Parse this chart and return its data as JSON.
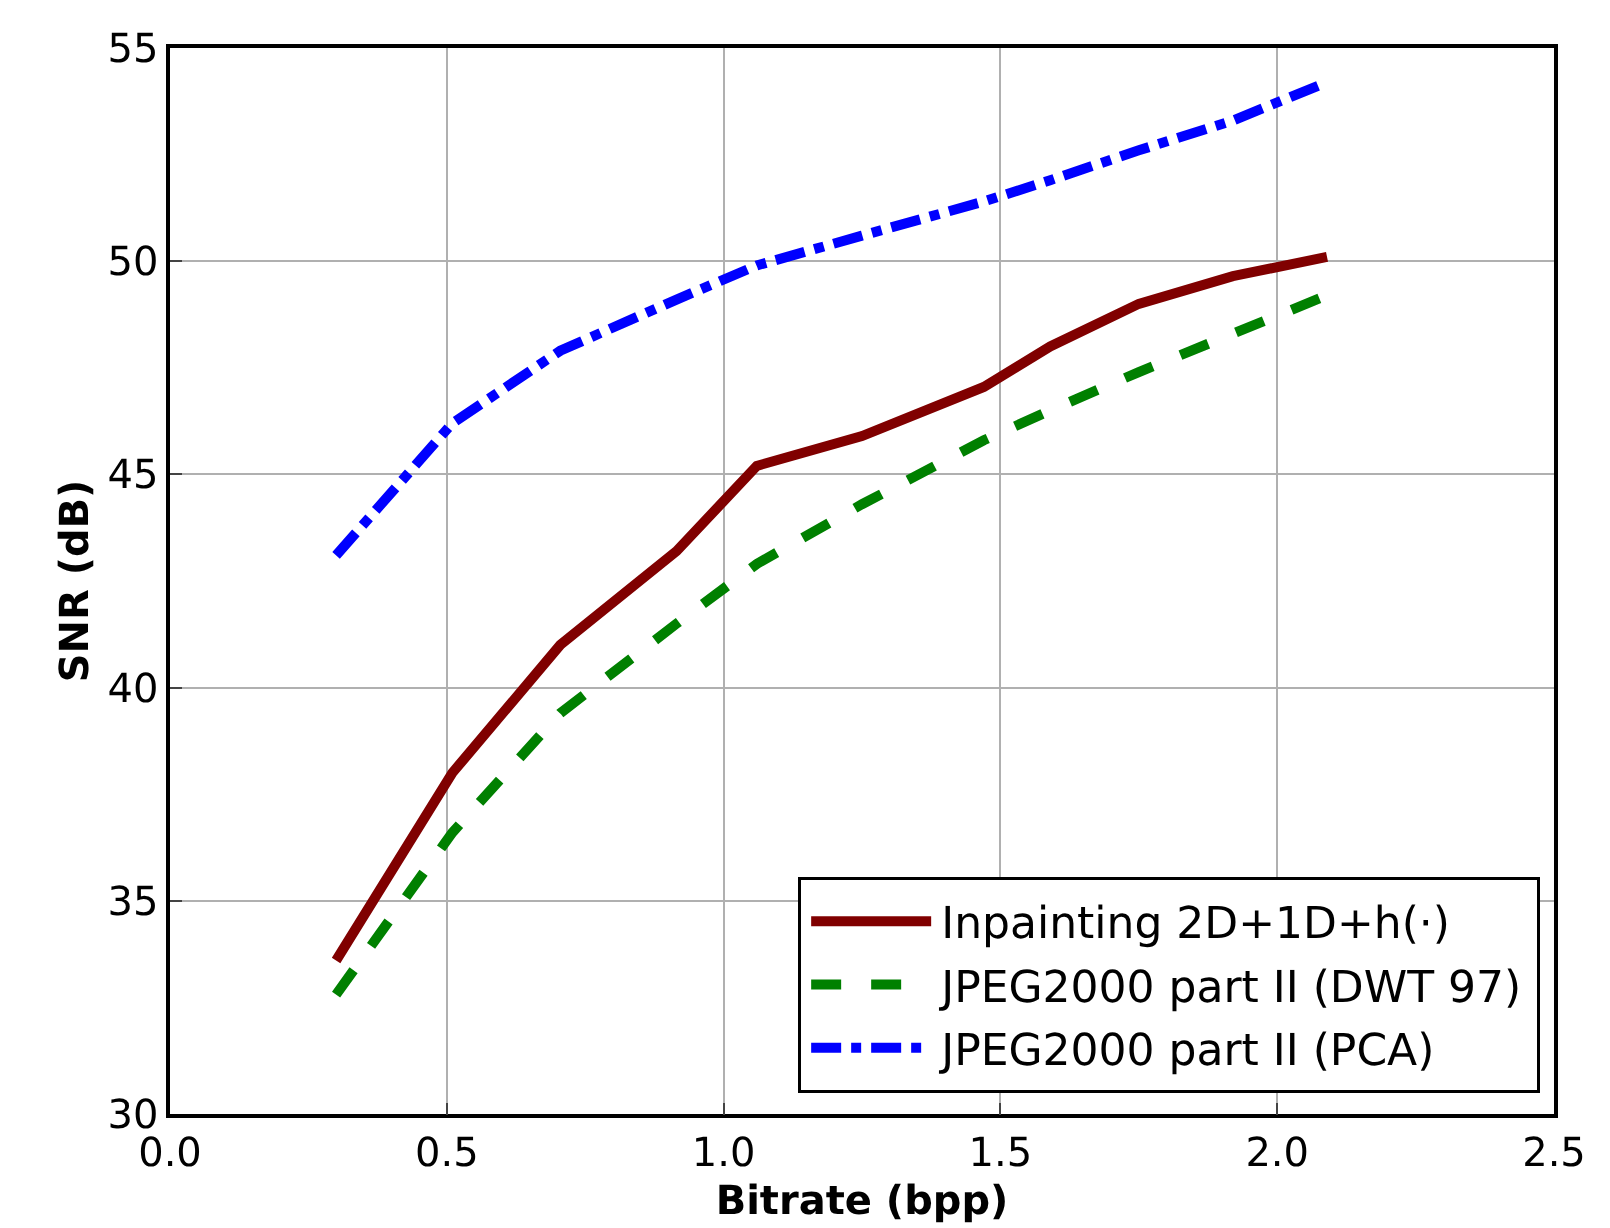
{
  "chart_data": {
    "type": "line",
    "xlabel": "Bitrate (bpp)",
    "ylabel": "SNR (dB)",
    "xlim": [
      0.0,
      2.5
    ],
    "xticks": [
      {
        "value": 0,
        "label": "0.0"
      },
      0.5,
      {
        "value": 1,
        "label": "1.0"
      },
      1.5,
      {
        "value": 2,
        "label": "2.0"
      },
      2.5
    ],
    "ylim": [
      30,
      55
    ],
    "yticks": [
      30,
      35,
      40,
      45,
      50,
      55
    ],
    "grid": true,
    "legend": "bottom right",
    "marker": "none",
    "x": [
      0.3,
      0.51,
      0.705,
      0.915,
      1.06,
      1.25,
      1.47,
      1.59,
      1.75,
      1.92,
      2.09
    ],
    "series": [
      {
        "name": "Inpainting 2D+1D+h(·)",
        "color": "#800000",
        "line_style": "solid",
        "values": [
          33.6,
          38.0,
          41.0,
          43.2,
          45.2,
          45.9,
          47.05,
          48.0,
          49.0,
          49.65,
          50.1
        ]
      },
      {
        "name": "JPEG2000 part II (DWT 97)",
        "color": "#008000",
        "line_style": "dashed",
        "values": [
          32.8,
          36.6,
          39.4,
          41.5,
          42.9,
          44.3,
          45.8,
          46.5,
          47.4,
          48.3,
          49.2
        ]
      },
      {
        "name": "JPEG2000 part II (PCA)",
        "color": "#0000ff",
        "line_style": "dashdot",
        "values": [
          43.1,
          46.2,
          47.9,
          49.1,
          49.9,
          50.6,
          51.4,
          51.9,
          52.6,
          53.3,
          54.2
        ]
      }
    ]
  }
}
